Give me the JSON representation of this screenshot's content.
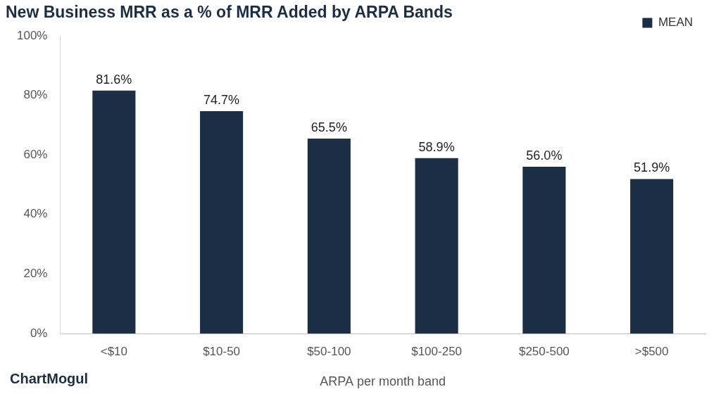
{
  "chart_data": {
    "type": "bar",
    "title": "New Business MRR as a % of MRR Added by ARPA Bands",
    "x_label": "ARPA per month band",
    "annotations": [
      "ChartMogul"
    ],
    "categories": [
      "<$10",
      "$10-50",
      "$50-100",
      "$100-250",
      "$250-500",
      ">$500"
    ],
    "series": [
      {
        "name": "MEAN",
        "color": "#1c2d46",
        "values": [
          81.6,
          74.7,
          65.5,
          58.9,
          56.0,
          51.9
        ],
        "value_labels": [
          "81.6%",
          "74.7%",
          "65.5%",
          "58.9%",
          "56.0%",
          "51.9%"
        ]
      }
    ],
    "ylim": [
      0,
      100
    ],
    "yticks": [
      {
        "value": 0,
        "label": "0%"
      },
      {
        "value": 20,
        "label": "20%"
      },
      {
        "value": 40,
        "label": "40%"
      },
      {
        "value": 60,
        "label": "60%"
      },
      {
        "value": 80,
        "label": "80%"
      },
      {
        "value": 100,
        "label": "100%"
      }
    ],
    "grid": false,
    "legend": "top-right",
    "data_labels": true
  }
}
